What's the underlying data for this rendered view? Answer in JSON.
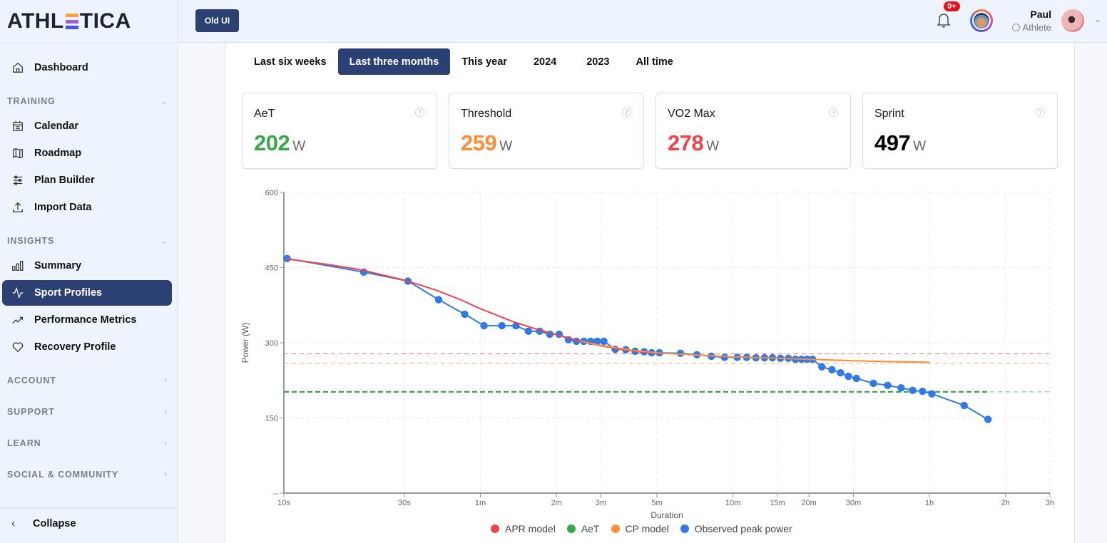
{
  "brand": {
    "name_pre": "ATHL",
    "name_post": "TICA",
    "e_colors": [
      "#ff9f3d",
      "#9d5fd6",
      "#3f55f0"
    ]
  },
  "header": {
    "old_ui_label": "Old UI",
    "notifications_badge": "9+",
    "user_name": "Paul",
    "user_role": "Athlete"
  },
  "sidebar": {
    "dashboard": "Dashboard",
    "training": {
      "label": "TRAINING",
      "items": [
        "Calendar",
        "Roadmap",
        "Plan Builder",
        "Import Data"
      ]
    },
    "insights": {
      "label": "INSIGHTS",
      "items": [
        "Summary",
        "Sport Profiles",
        "Performance Metrics",
        "Recovery Profile"
      ]
    },
    "sections": [
      "ACCOUNT",
      "SUPPORT",
      "LEARN",
      "SOCIAL & COMMUNITY"
    ],
    "collapse": "Collapse",
    "active": "Sport Profiles"
  },
  "tabs": {
    "items": [
      "Last six weeks",
      "Last three months",
      "This year",
      "2024",
      "2023",
      "All time"
    ],
    "active": "Last three months"
  },
  "metrics": [
    {
      "title": "AeT",
      "value": "202",
      "unit": "W",
      "color": "#36a84a"
    },
    {
      "title": "Threshold",
      "value": "259",
      "unit": "W",
      "color": "#ff8c38"
    },
    {
      "title": "VO2 Max",
      "value": "278",
      "unit": "W",
      "color": "#f2434a"
    },
    {
      "title": "Sprint",
      "value": "497",
      "unit": "W",
      "color": "#000000"
    }
  ],
  "chart_data": {
    "type": "line",
    "xlabel": "Duration",
    "ylabel": "Power (W)",
    "x_scale": "log",
    "x_unit": "seconds",
    "xlim": [
      10,
      10800
    ],
    "ylim": [
      0,
      600
    ],
    "grid": true,
    "legend_position": "bottom-center",
    "x_ticks": [
      {
        "value": 10,
        "label": "10s"
      },
      {
        "value": 30,
        "label": "30s"
      },
      {
        "value": 60,
        "label": "1m"
      },
      {
        "value": 120,
        "label": "2m"
      },
      {
        "value": 180,
        "label": "3m"
      },
      {
        "value": 300,
        "label": "5m"
      },
      {
        "value": 600,
        "label": "10m"
      },
      {
        "value": 900,
        "label": "15m"
      },
      {
        "value": 1200,
        "label": "20m"
      },
      {
        "value": 1800,
        "label": "30m"
      },
      {
        "value": 3600,
        "label": "1h"
      },
      {
        "value": 7200,
        "label": "2h"
      },
      {
        "value": 10800,
        "label": "3h"
      }
    ],
    "y_ticks": [
      {
        "value": 0,
        "label": "--"
      },
      {
        "value": 150,
        "label": "150"
      },
      {
        "value": 300,
        "label": "300"
      },
      {
        "value": 450,
        "label": "450"
      },
      {
        "value": 600,
        "label": "600"
      }
    ],
    "legend": [
      {
        "name": "APR model",
        "color": "#f2434a"
      },
      {
        "name": "AeT",
        "color": "#36a84a"
      },
      {
        "name": "CP model",
        "color": "#ff8c38"
      },
      {
        "name": "Observed peak power",
        "color": "#2f7ae5"
      }
    ],
    "reference_lines": [
      {
        "name": "VO2 Max",
        "y": 278,
        "color": "#f2434a"
      },
      {
        "name": "Threshold",
        "y": 259,
        "color": "#ff8c38"
      },
      {
        "name": "AeT",
        "y": 202,
        "color": "#36a84a"
      }
    ],
    "series": [
      {
        "name": "Observed peak power",
        "color": "#2f7ae5",
        "points": [
          [
            10.3,
            468
          ],
          [
            20.7,
            441
          ],
          [
            31,
            423
          ],
          [
            41,
            386
          ],
          [
            52,
            357
          ],
          [
            62,
            334
          ],
          [
            73,
            334
          ],
          [
            83,
            334
          ],
          [
            93,
            323
          ],
          [
            103,
            323
          ],
          [
            113,
            317
          ],
          [
            123,
            317
          ],
          [
            134,
            306
          ],
          [
            144,
            303
          ],
          [
            154,
            303
          ],
          [
            164,
            303
          ],
          [
            174,
            303
          ],
          [
            185,
            303
          ],
          [
            205,
            287
          ],
          [
            226,
            286
          ],
          [
            246,
            283
          ],
          [
            267,
            282
          ],
          [
            286,
            280
          ],
          [
            307,
            280
          ],
          [
            372,
            279
          ],
          [
            432,
            276
          ],
          [
            493,
            273
          ],
          [
            556,
            271
          ],
          [
            624,
            271
          ],
          [
            680,
            271
          ],
          [
            740,
            270
          ],
          [
            800,
            270
          ],
          [
            860,
            270
          ],
          [
            925,
            269
          ],
          [
            995,
            269
          ],
          [
            1060,
            267
          ],
          [
            1120,
            267
          ],
          [
            1180,
            267
          ],
          [
            1240,
            267
          ],
          [
            1350,
            252
          ],
          [
            1480,
            246
          ],
          [
            1600,
            240
          ],
          [
            1720,
            233
          ],
          [
            1850,
            229
          ],
          [
            2160,
            219
          ],
          [
            2460,
            215
          ],
          [
            2780,
            210
          ],
          [
            3090,
            205
          ],
          [
            3380,
            203
          ],
          [
            3680,
            198
          ],
          [
            4940,
            175
          ],
          [
            6140,
            147
          ]
        ]
      },
      {
        "name": "APR model",
        "color": "#f2434a",
        "points": [
          [
            10.3,
            467
          ],
          [
            15,
            456
          ],
          [
            20,
            446
          ],
          [
            30,
            425
          ],
          [
            40,
            405
          ],
          [
            50,
            386
          ],
          [
            60,
            368
          ],
          [
            80,
            343
          ],
          [
            100,
            327
          ],
          [
            120,
            316
          ],
          [
            150,
            303
          ],
          [
            180,
            294
          ],
          [
            220,
            286
          ],
          [
            270,
            281
          ],
          [
            320,
            279
          ]
        ]
      },
      {
        "name": "CP model",
        "color": "#ff8c38",
        "points": [
          [
            150,
            303
          ],
          [
            180,
            295
          ],
          [
            240,
            285
          ],
          [
            300,
            280
          ],
          [
            450,
            275
          ],
          [
            600,
            272
          ],
          [
            900,
            269
          ],
          [
            1200,
            267
          ],
          [
            1800,
            264
          ],
          [
            2700,
            262
          ],
          [
            3600,
            261
          ]
        ]
      },
      {
        "name": "AeT",
        "color": "#36a84a",
        "points": [
          [
            10,
            202
          ],
          [
            6140,
            202
          ]
        ]
      }
    ]
  }
}
